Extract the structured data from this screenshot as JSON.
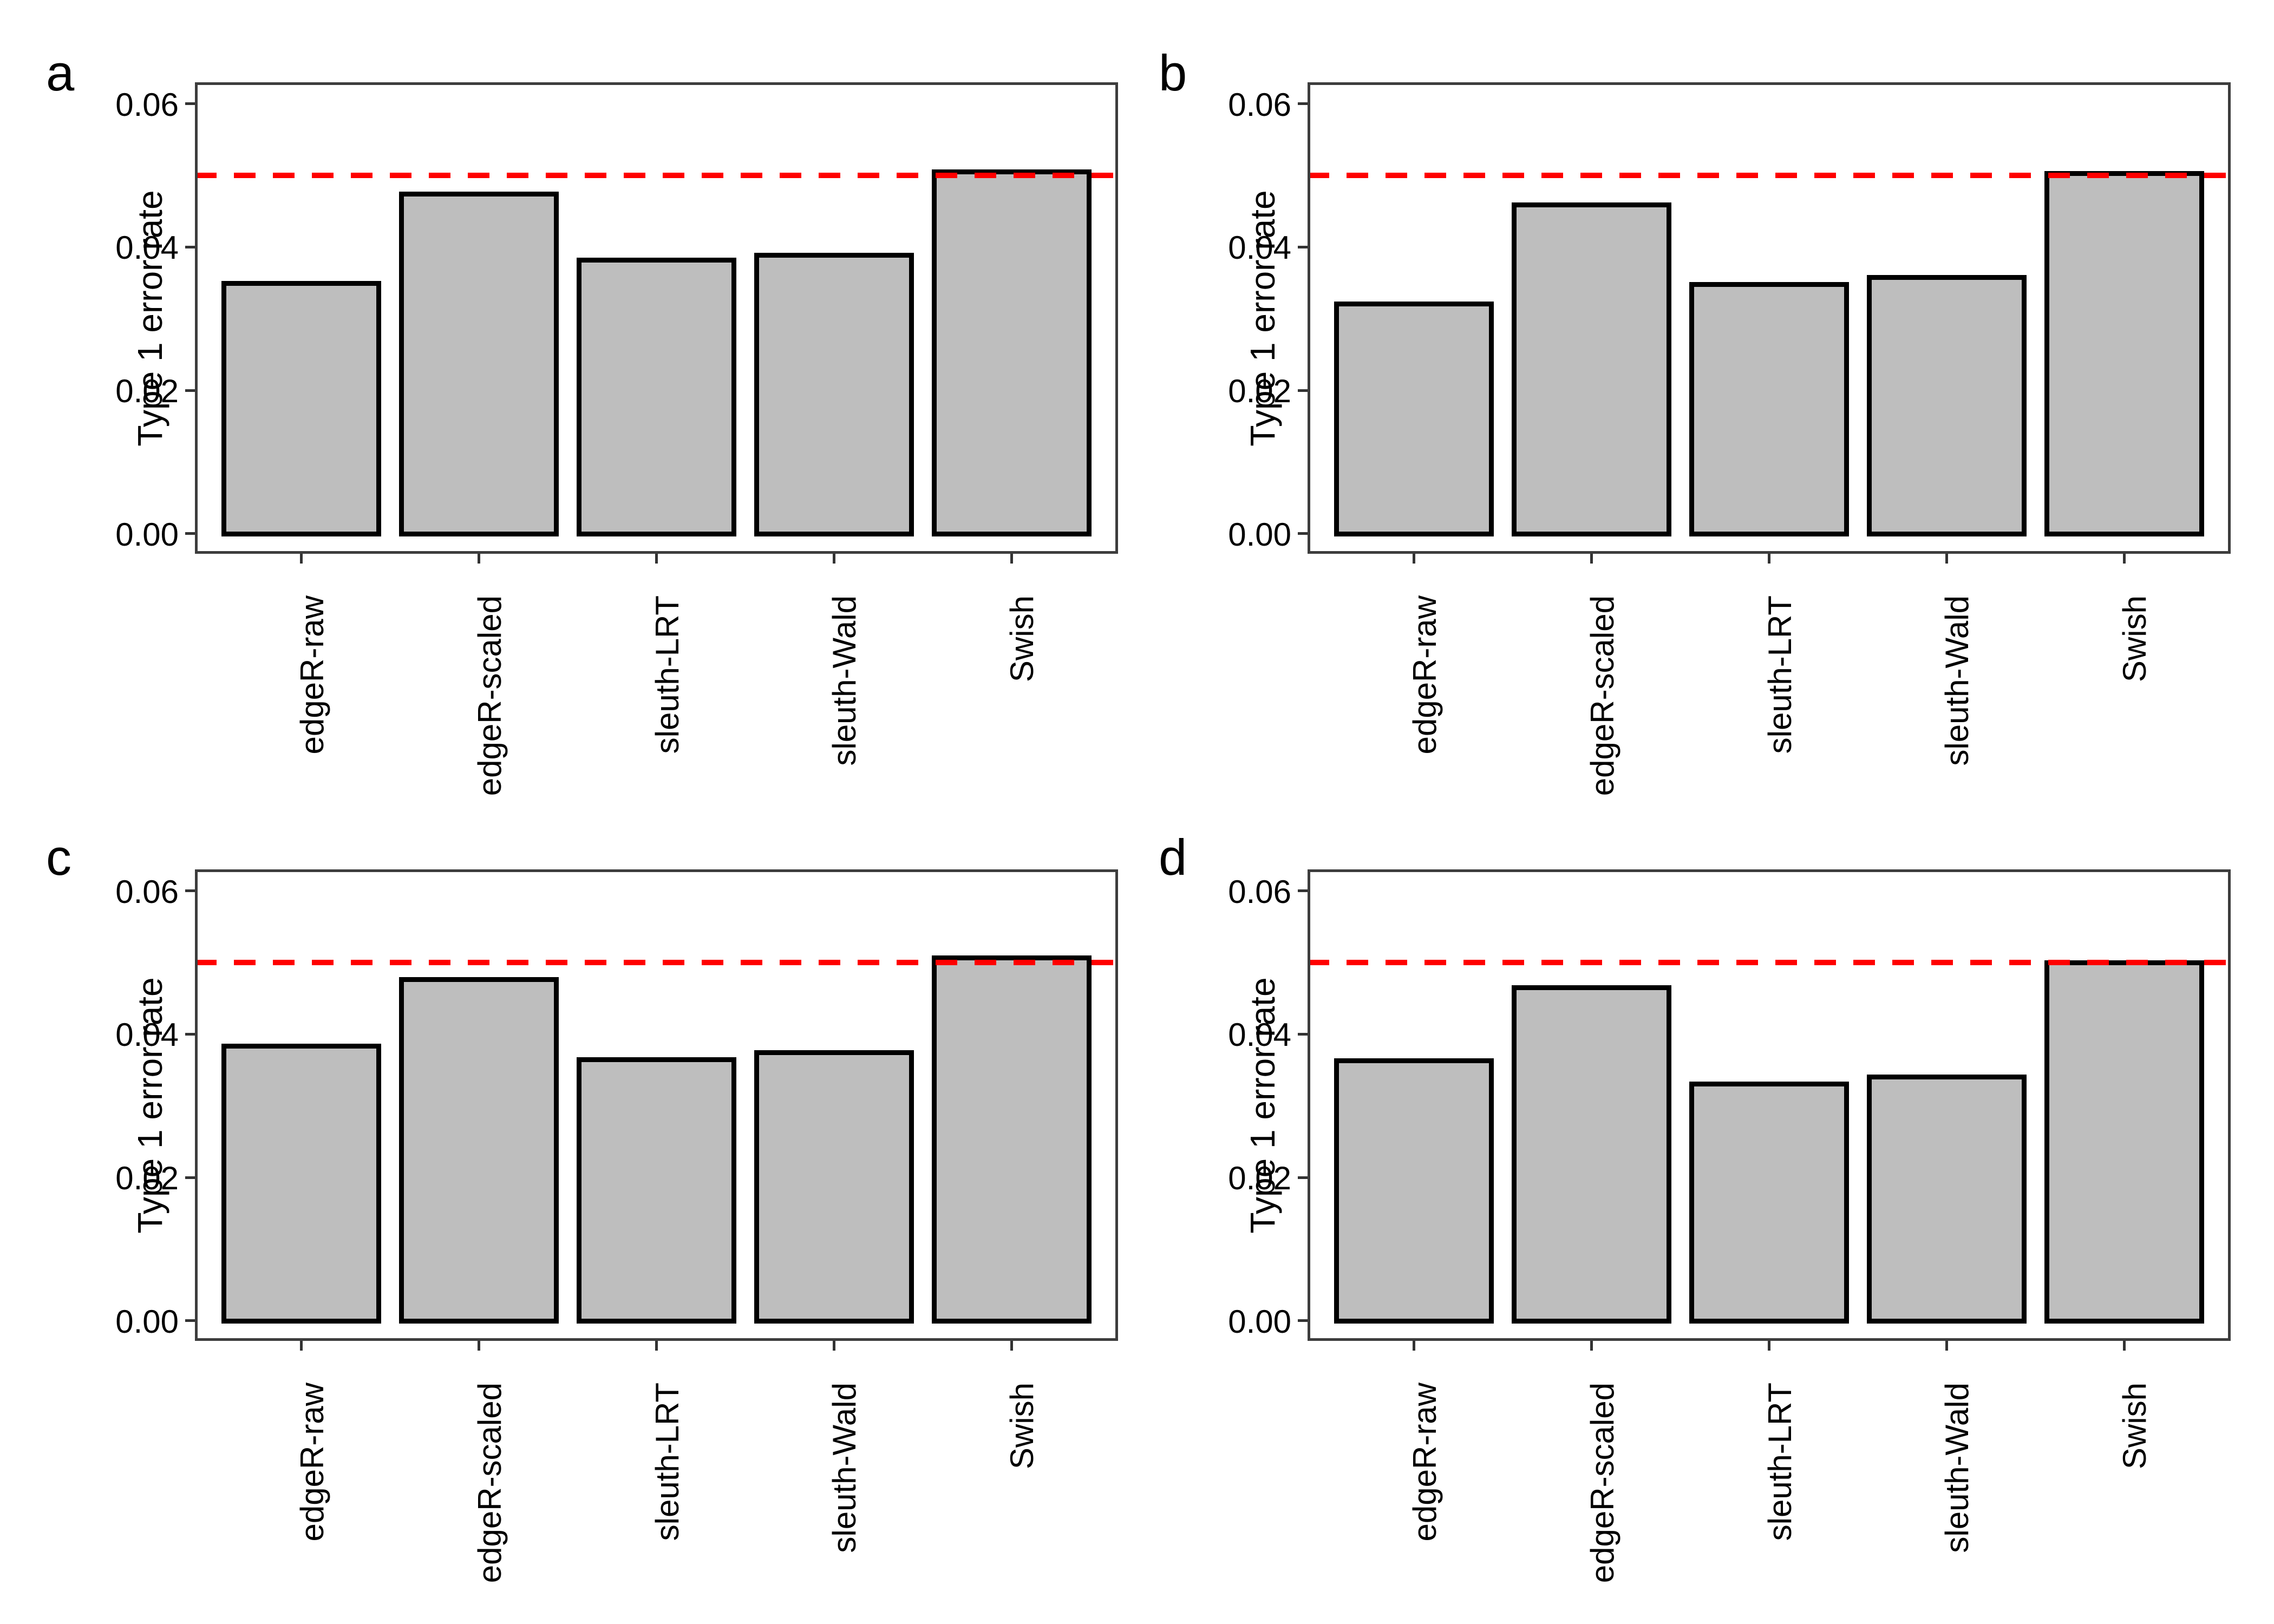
{
  "styles": {
    "background": "#FFFFFF",
    "panel_border_color": "#3D3D3D",
    "tick_color": "#333333",
    "text_color": "#000000",
    "bar_fill": "#BEBEBE",
    "bar_stroke": "#000000",
    "reference_color": "#FF0000"
  },
  "chart_data": [
    {
      "type": "bar",
      "panel_label": "a",
      "categories": [
        "edgeR-raw",
        "edgeR-scaled",
        "sleuth-LRT",
        "sleuth-Wald",
        "Swish"
      ],
      "values": [
        0.035,
        0.0474,
        0.0382,
        0.0389,
        0.0505
      ],
      "title": "",
      "xlabel": "",
      "ylabel": "Type 1 error rate",
      "ylim": [
        0,
        0.06
      ],
      "yticks": [
        0,
        0.02,
        0.04,
        0.06
      ],
      "ytick_labels": [
        "0.00",
        "0.02",
        "0.04",
        "0.06"
      ],
      "reference_line": {
        "value": 0.05,
        "color": "#FF0000",
        "style": "dashed"
      },
      "bar_fill": "#BEBEBE",
      "bar_stroke": "#000000",
      "grid": false,
      "legend": "none"
    },
    {
      "type": "bar",
      "panel_label": "b",
      "categories": [
        "edgeR-raw",
        "edgeR-scaled",
        "sleuth-LRT",
        "sleuth-Wald",
        "Swish"
      ],
      "values": [
        0.0321,
        0.0459,
        0.0348,
        0.0358,
        0.0503
      ],
      "title": "",
      "xlabel": "",
      "ylabel": "Type 1 error rate",
      "ylim": [
        0,
        0.06
      ],
      "yticks": [
        0,
        0.02,
        0.04,
        0.06
      ],
      "ytick_labels": [
        "0.00",
        "0.02",
        "0.04",
        "0.06"
      ],
      "reference_line": {
        "value": 0.05,
        "color": "#FF0000",
        "style": "dashed"
      },
      "bar_fill": "#BEBEBE",
      "bar_stroke": "#000000",
      "grid": false,
      "legend": "none"
    },
    {
      "type": "bar",
      "panel_label": "c",
      "categories": [
        "edgeR-raw",
        "edgeR-scaled",
        "sleuth-LRT",
        "sleuth-Wald",
        "Swish"
      ],
      "values": [
        0.0384,
        0.0477,
        0.0365,
        0.0375,
        0.0507
      ],
      "title": "",
      "xlabel": "",
      "ylabel": "Type 1 error rate",
      "ylim": [
        0,
        0.06
      ],
      "yticks": [
        0,
        0.02,
        0.04,
        0.06
      ],
      "ytick_labels": [
        "0.00",
        "0.02",
        "0.04",
        "0.06"
      ],
      "reference_line": {
        "value": 0.05,
        "color": "#FF0000",
        "style": "dashed"
      },
      "bar_fill": "#BEBEBE",
      "bar_stroke": "#000000",
      "grid": false,
      "legend": "none"
    },
    {
      "type": "bar",
      "panel_label": "d",
      "categories": [
        "edgeR-raw",
        "edgeR-scaled",
        "sleuth-LRT",
        "sleuth-Wald",
        "Swish"
      ],
      "values": [
        0.0363,
        0.0465,
        0.0331,
        0.0341,
        0.05
      ],
      "title": "",
      "xlabel": "",
      "ylabel": "Type 1 error rate",
      "ylim": [
        0,
        0.06
      ],
      "yticks": [
        0,
        0.02,
        0.04,
        0.06
      ],
      "ytick_labels": [
        "0.00",
        "0.02",
        "0.04",
        "0.06"
      ],
      "reference_line": {
        "value": 0.05,
        "color": "#FF0000",
        "style": "dashed"
      },
      "bar_fill": "#BEBEBE",
      "bar_stroke": "#000000",
      "grid": false,
      "legend": "none"
    }
  ]
}
